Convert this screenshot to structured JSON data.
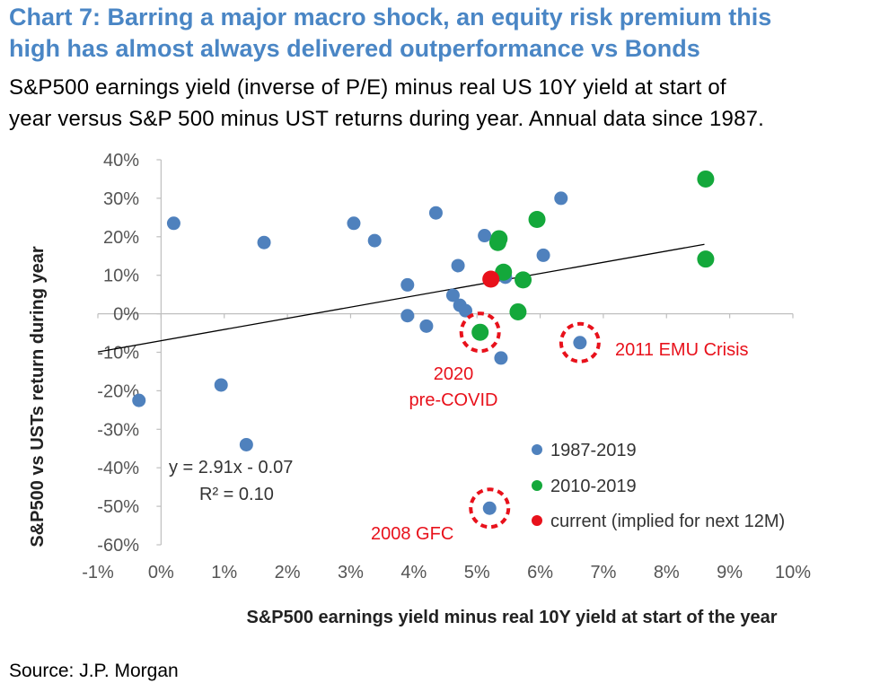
{
  "header": {
    "title_line1": "Chart 7: Barring a major macro shock, an equity risk premium this",
    "title_line2": "high has almost always delivered outperformance vs Bonds",
    "subtitle_line1": "S&P500 earnings yield (inverse of P/E) minus real US 10Y yield at start of",
    "subtitle_line2": "year versus S&P 500 minus UST returns during year. Annual data since 1987."
  },
  "footer": {
    "source": "Source: J.P. Morgan"
  },
  "colors": {
    "title": "#4a86c5",
    "blue": "#4f81bd",
    "green": "#14a83b",
    "red": "#e8111b"
  },
  "chart_data": {
    "type": "scatter",
    "title": "Chart 7: Barring a major macro shock, an equity risk premium this high has almost always delivered outperformance vs Bonds",
    "xlabel": "S&P500 earnings yield minus real 10Y yield at start of the year",
    "ylabel": "S&P500 vs USTs return during year",
    "xlim": [
      -0.01,
      0.1
    ],
    "ylim": [
      -0.6,
      0.4
    ],
    "xticks": [
      -0.01,
      0,
      0.01,
      0.02,
      0.03,
      0.04,
      0.05,
      0.06,
      0.07,
      0.08,
      0.09,
      0.1
    ],
    "xtick_labels": [
      "-1%",
      "0%",
      "1%",
      "2%",
      "3%",
      "4%",
      "5%",
      "6%",
      "7%",
      "8%",
      "9%",
      "10%"
    ],
    "yticks": [
      0.4,
      0.3,
      0.2,
      0.1,
      0.0,
      -0.1,
      -0.2,
      -0.3,
      -0.4,
      -0.5,
      -0.6
    ],
    "ytick_labels": [
      "40%",
      "30%",
      "20%",
      "10%",
      "0%",
      "-10%",
      "-20%",
      "-30%",
      "-40%",
      "-50%",
      "-60%"
    ],
    "series": [
      {
        "name": "1987-2019",
        "color": "#4f81bd",
        "points": [
          [
            -0.0035,
            -0.225
          ],
          [
            0.002,
            0.235
          ],
          [
            0.0095,
            -0.185
          ],
          [
            0.0135,
            -0.34
          ],
          [
            0.0163,
            0.185
          ],
          [
            0.0305,
            0.235
          ],
          [
            0.0338,
            0.19
          ],
          [
            0.039,
            0.075
          ],
          [
            0.039,
            -0.005
          ],
          [
            0.042,
            -0.032
          ],
          [
            0.0435,
            0.262
          ],
          [
            0.0462,
            0.048
          ],
          [
            0.047,
            0.125
          ],
          [
            0.0473,
            0.022
          ],
          [
            0.0482,
            0.008
          ],
          [
            0.0512,
            0.203
          ],
          [
            0.0538,
            -0.115
          ],
          [
            0.0545,
            0.095
          ],
          [
            0.0605,
            0.152
          ],
          [
            0.0633,
            0.3
          ],
          [
            0.0663,
            -0.075
          ],
          [
            0.052,
            -0.505
          ]
        ]
      },
      {
        "name": "2010-2019",
        "color": "#14a83b",
        "points": [
          [
            0.0533,
            0.185
          ],
          [
            0.0535,
            0.195
          ],
          [
            0.0542,
            0.108
          ],
          [
            0.0565,
            0.005
          ],
          [
            0.0573,
            0.088
          ],
          [
            0.0595,
            0.245
          ],
          [
            0.0862,
            0.35
          ],
          [
            0.0862,
            0.142
          ],
          [
            0.0505,
            -0.048
          ]
        ]
      },
      {
        "name": "current (implied for next 12M)",
        "color": "#e8111b",
        "points": [
          [
            0.0522,
            0.09
          ]
        ]
      }
    ],
    "trendline": {
      "label": "y = 2.91x - 0.07",
      "r2_label": "R² = 0.10",
      "slope": 2.91,
      "intercept": -0.07,
      "x_range": [
        -0.01,
        0.086
      ]
    },
    "annotations": [
      {
        "name": "2011-emu-crisis",
        "text": "2011 EMU Crisis",
        "x": 0.0663,
        "y": -0.075
      },
      {
        "name": "2020-pre-covid",
        "text_line1": "2020",
        "text_line2": "pre-COVID",
        "x": 0.0505,
        "y": -0.048
      },
      {
        "name": "2008-gfc",
        "text": "2008 GFC",
        "x": 0.052,
        "y": -0.505
      }
    ]
  }
}
